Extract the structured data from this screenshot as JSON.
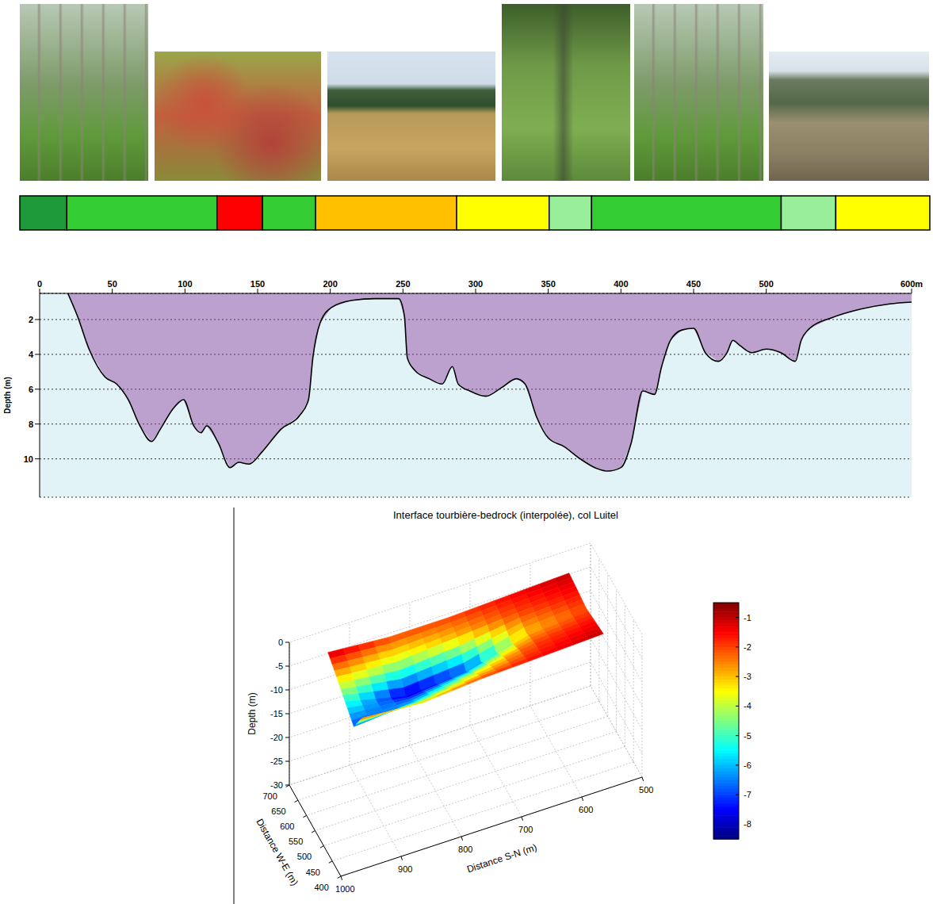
{
  "strip": {
    "segments": [
      {
        "start": 0,
        "end": 31,
        "color": "#1f9a3a"
      },
      {
        "start": 31,
        "end": 130,
        "color": "#33cc33"
      },
      {
        "start": 130,
        "end": 160,
        "color": "#ff0000"
      },
      {
        "start": 160,
        "end": 195,
        "color": "#33cc33"
      },
      {
        "start": 195,
        "end": 288,
        "color": "#ffc000"
      },
      {
        "start": 288,
        "end": 349,
        "color": "#ffff00"
      },
      {
        "start": 349,
        "end": 377,
        "color": "#99ee99"
      },
      {
        "start": 377,
        "end": 502,
        "color": "#33cc33"
      },
      {
        "start": 502,
        "end": 538,
        "color": "#99ee99"
      },
      {
        "start": 538,
        "end": 600,
        "color": "#ffff00"
      }
    ]
  },
  "chart_data": [
    {
      "type": "line",
      "y_label": "Depth (m)",
      "x": [
        19.4,
        26,
        34,
        45,
        53,
        61,
        69,
        77,
        83,
        92,
        99,
        106,
        111,
        115,
        123,
        131,
        137,
        144,
        153,
        158,
        166,
        179,
        185,
        188,
        193,
        201,
        215,
        231,
        247,
        251,
        253,
        258,
        268,
        277,
        284,
        288,
        296,
        307,
        318,
        328,
        334,
        342,
        350,
        361,
        372,
        382,
        391,
        400,
        407,
        415,
        423,
        428,
        434,
        442,
        450,
        458,
        467,
        473,
        477,
        482,
        490,
        500,
        510,
        520,
        524,
        530,
        545,
        565,
        585,
        600
      ],
      "values": [
        0.5,
        1.8,
        3.7,
        5.3,
        5.7,
        6.6,
        8.1,
        9,
        8.3,
        7.1,
        6.6,
        8.1,
        8.5,
        8.1,
        9.1,
        10.5,
        10.2,
        10.3,
        9.6,
        9.1,
        8.3,
        7.5,
        6.6,
        4.2,
        2.2,
        1.3,
        0.9,
        0.8,
        0.8,
        1.8,
        4.2,
        4.9,
        5.4,
        5.7,
        4.7,
        5.7,
        6.1,
        6.4,
        5.9,
        5.4,
        5.7,
        7.6,
        8.8,
        9.3,
        10,
        10.5,
        10.7,
        10.5,
        9.1,
        6.1,
        6.3,
        4.7,
        3.2,
        2.6,
        2.5,
        3.9,
        4.4,
        3.9,
        3.2,
        3.5,
        3.9,
        3.7,
        3.9,
        4.4,
        3.2,
        2.5,
        1.9,
        1.4,
        1.1,
        1
      ],
      "color": "#000000",
      "xlim": [
        0,
        600
      ],
      "xticks": [
        0,
        50,
        100,
        150,
        200,
        250,
        300,
        350,
        400,
        450,
        500,
        {
          "value": 600,
          "label": "600m"
        }
      ],
      "ylim": [
        0.5,
        12.2
      ],
      "yticks": [
        2,
        4,
        6,
        8,
        10
      ],
      "grid": true
    },
    {
      "type": "surface",
      "title": "Interface tourbière-bedrock (interpolée), col Luitel",
      "x_label": "Distance W-E (m)",
      "y_label": "Distance S-N (m)",
      "z_label": "Depth (m)",
      "x": [
        450,
        500,
        550,
        600,
        650
      ],
      "y": [
        550,
        650,
        750,
        850,
        950
      ],
      "z": [
        [
          -1,
          -1.5,
          -2,
          -1.5,
          -1
        ],
        [
          -1.5,
          -2,
          -3,
          -2,
          -1.5
        ],
        [
          -2,
          -4,
          -7,
          -3,
          -2
        ],
        [
          -3,
          -6,
          -8,
          -4,
          -2
        ],
        [
          -2,
          -7,
          -5,
          -3,
          -1
        ]
      ],
      "xlim": [
        400,
        700
      ],
      "xticks": [
        400,
        450,
        500,
        550,
        600,
        650,
        700
      ],
      "ylim": [
        500,
        1000
      ],
      "yticks": [
        500,
        600,
        700,
        800,
        900,
        1000
      ],
      "zlim": [
        -30,
        0
      ],
      "zticks": [
        0,
        -5,
        -10,
        -15,
        -20,
        -25,
        -30
      ],
      "colorbar": {
        "range": [
          -8.5,
          -0.5
        ],
        "ticks": [
          -1,
          -2,
          -3,
          -4,
          -5,
          -6,
          -7,
          -8
        ]
      }
    }
  ]
}
